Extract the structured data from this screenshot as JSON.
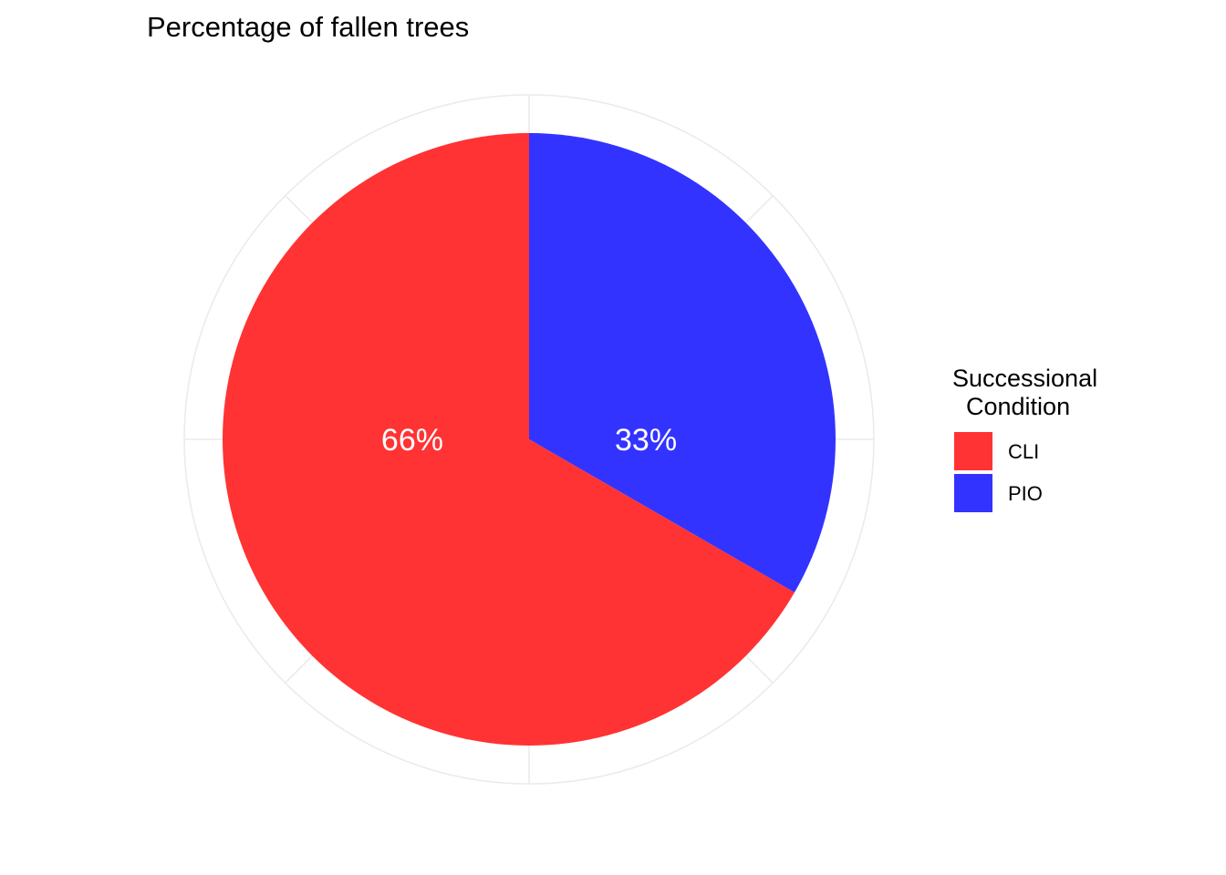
{
  "chart_data": {
    "type": "pie",
    "title": "Percentage of fallen trees",
    "legend": {
      "title_lines": [
        "Successional",
        "  Condition"
      ],
      "placement": "right"
    },
    "grid": true,
    "slices": [
      {
        "name": "CLI",
        "value": 66,
        "label": "66%",
        "color": "#ff3333"
      },
      {
        "name": "PIO",
        "value": 33,
        "label": "33%",
        "color": "#3333ff"
      }
    ]
  }
}
